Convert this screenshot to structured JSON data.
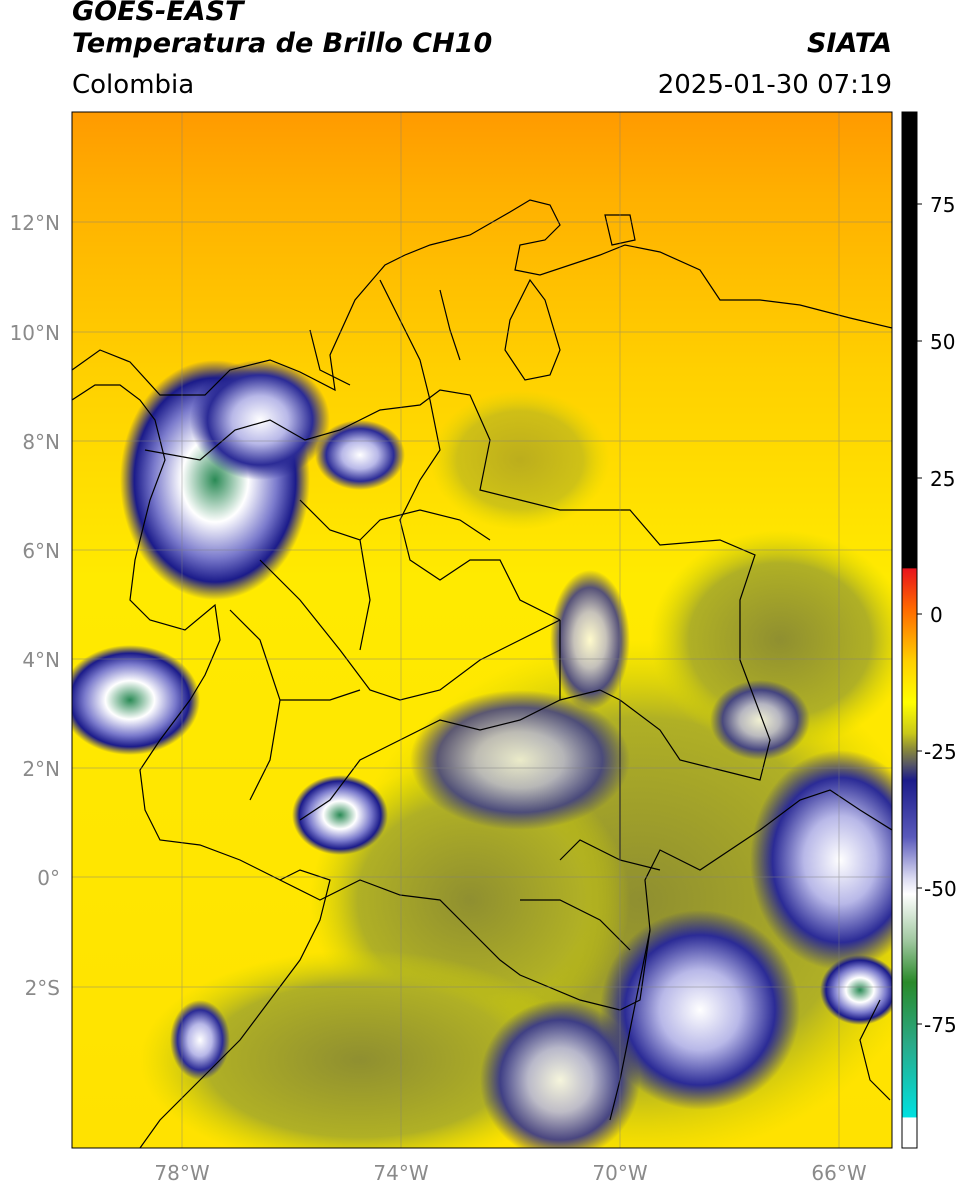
{
  "header": {
    "satellite": "GOES-EAST",
    "product": "Temperatura de Brillo CH10",
    "region": "Colombia",
    "agency": "SIATA",
    "datetime": "2025-01-30 07:19"
  },
  "map": {
    "lat_labels": [
      "12°N",
      "10°N",
      "8°N",
      "6°N",
      "4°N",
      "2°N",
      "0°",
      "2°S"
    ],
    "lon_labels": [
      "78°W",
      "74°W",
      "70°W",
      "66°W"
    ]
  },
  "colorbar": {
    "ticks": [
      "75",
      "50",
      "25",
      "0",
      "-25",
      "-50",
      "-75"
    ],
    "colors": {
      "hot": "#000000",
      "warm": "#e8141c",
      "orange": "#ff9a00",
      "yellow": "#ffff00",
      "olive": "#9a9a2a",
      "navy": "#1b1b8a",
      "white": "#ffffff",
      "green": "#2a8a2a",
      "cyan": "#00d8d8"
    }
  }
}
